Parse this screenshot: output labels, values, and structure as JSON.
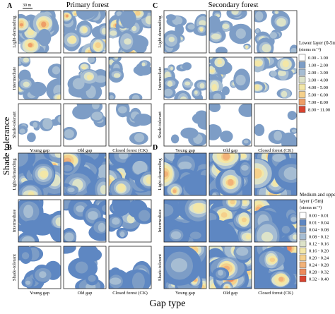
{
  "figure": {
    "panel_letters": [
      "A",
      "B",
      "C",
      "D"
    ],
    "column_titles": {
      "primary": "Primary forest",
      "secondary": "Secondary forest"
    },
    "x_axis_title": "Gap type",
    "y_axis_title": "Shade tolerance",
    "scale_bar": "30 m",
    "north_symbol": "N",
    "row_labels": [
      "Light-demanding",
      "Intermediate",
      "Shade-tolerant"
    ],
    "col_labels": [
      "Young gap",
      "Old gap",
      "Closed forest (CK)"
    ]
  },
  "legend_lower": {
    "title": "Lower layer (0-5m)",
    "unit": "(stems m⁻²)",
    "items": [
      {
        "label": "0.00 - 1.00",
        "color": "#ffffff"
      },
      {
        "label": "1.00 - 2.00",
        "color": "#7d9dc6"
      },
      {
        "label": "2.00 - 3.00",
        "color": "#a6bdd3"
      },
      {
        "label": "3.00 - 4.00",
        "color": "#dde3c9"
      },
      {
        "label": "4.00 - 5.00",
        "color": "#f3e7a7"
      },
      {
        "label": "5.00 - 6.00",
        "color": "#f5d08b"
      },
      {
        "label": "7.00 - 8.00",
        "color": "#ee9e67"
      },
      {
        "label": "8.00 - 11.00",
        "color": "#d9432f"
      }
    ]
  },
  "legend_upper": {
    "title_line1": "Medium and upper",
    "title_line2": "layer (>5m)",
    "unit": "(stems m⁻²)",
    "items": [
      {
        "label": "0.00 - 0.01",
        "color": "#ffffff"
      },
      {
        "label": "0.01 - 0.04",
        "color": "#5e87c2"
      },
      {
        "label": "0.04 - 0.08",
        "color": "#7d9dc6"
      },
      {
        "label": "0.08 - 0.12",
        "color": "#a6bdd3"
      },
      {
        "label": "0.12 - 0.16",
        "color": "#dde3c9"
      },
      {
        "label": "0.16 - 0.20",
        "color": "#f3e7a7"
      },
      {
        "label": "0.20 - 0.24",
        "color": "#f5d08b"
      },
      {
        "label": "0.24 - 0.28",
        "color": "#f2b278"
      },
      {
        "label": "0.28 - 0.32",
        "color": "#ee8a5b"
      },
      {
        "label": "0.32 - 0.40",
        "color": "#d9432f"
      }
    ]
  }
}
